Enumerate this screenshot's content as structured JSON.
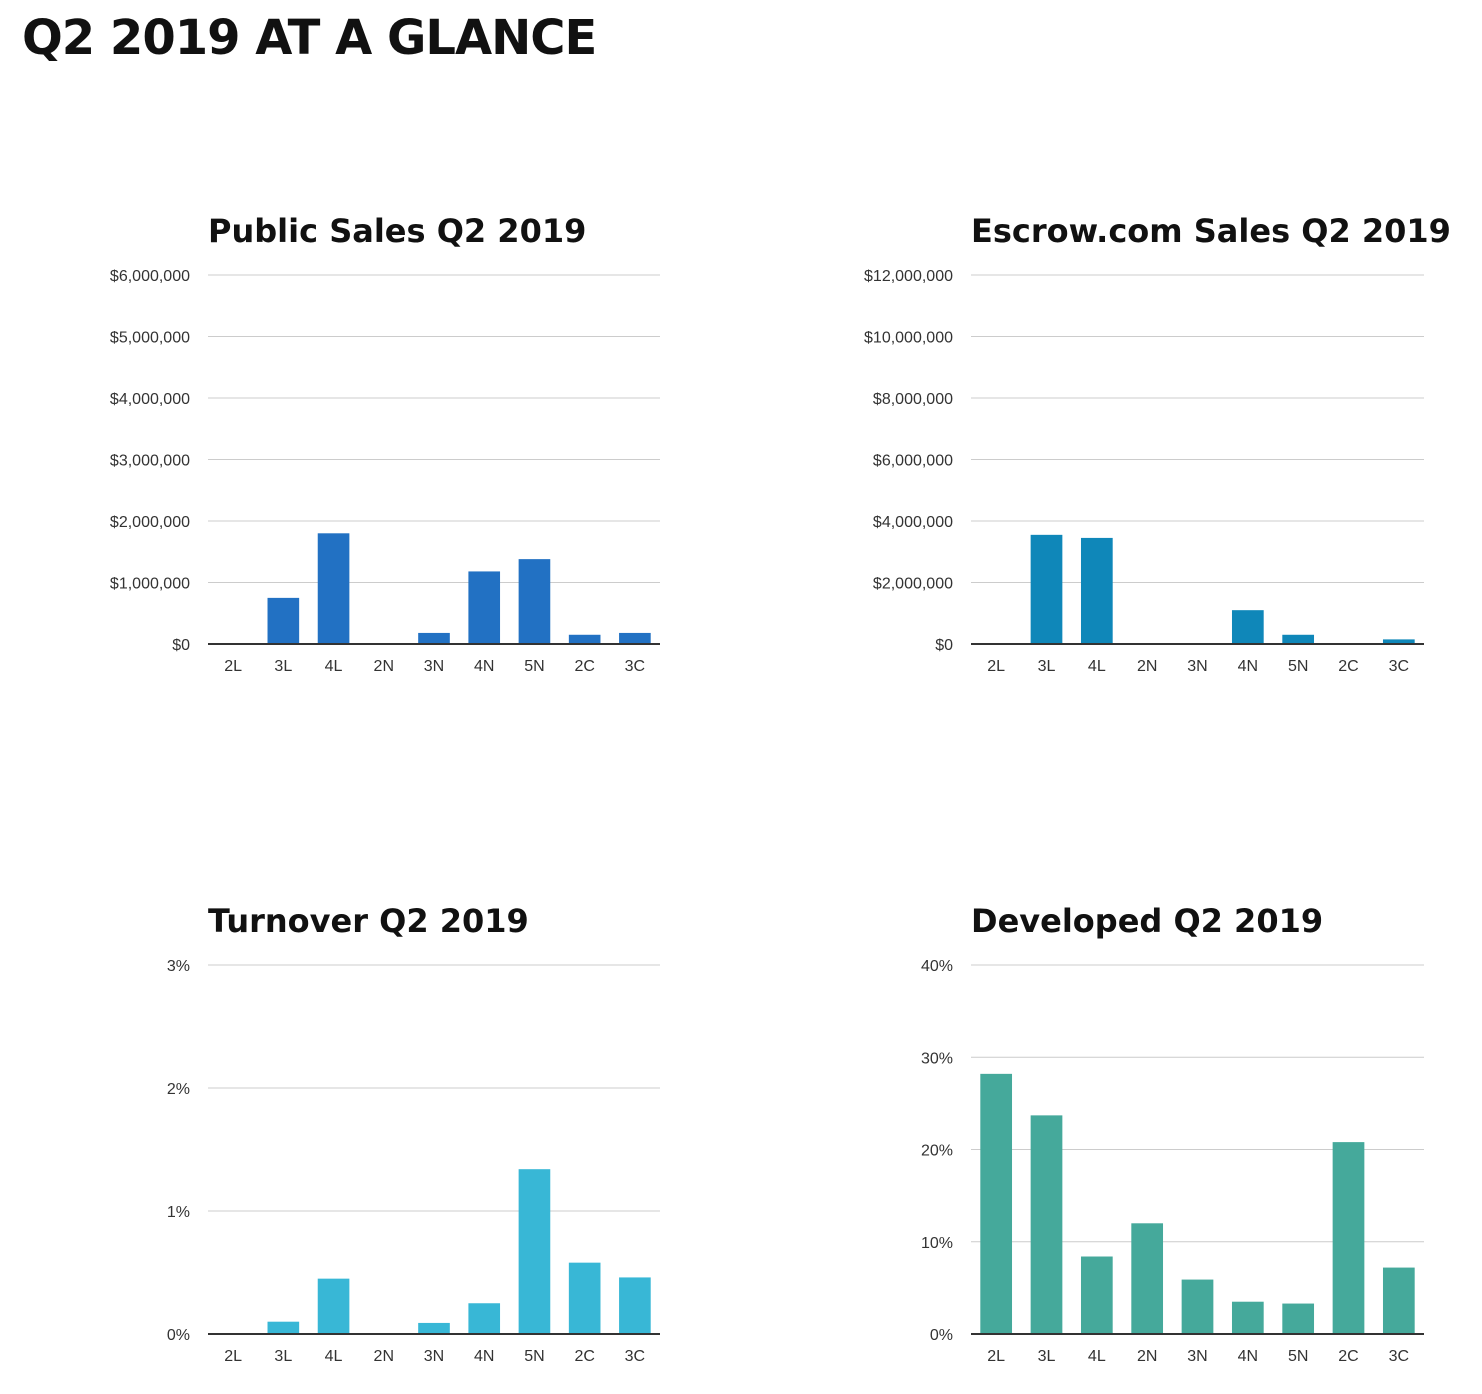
{
  "page_title": "Q2 2019 AT A GLANCE",
  "chart_data": [
    {
      "type": "bar",
      "title": "Public Sales Q2 2019",
      "categories": [
        "2L",
        "3L",
        "4L",
        "2N",
        "3N",
        "4N",
        "5N",
        "2C",
        "3C"
      ],
      "values": [
        0,
        750000,
        1800000,
        0,
        180000,
        1180000,
        1380000,
        150000,
        180000
      ],
      "ylim": [
        0,
        6000000
      ],
      "yticks": [
        0,
        1000000,
        2000000,
        3000000,
        4000000,
        5000000,
        6000000
      ],
      "ytick_labels": [
        "$0",
        "$1,000,000",
        "$2,000,000",
        "$3,000,000",
        "$4,000,000",
        "$5,000,000",
        "$6,000,000"
      ],
      "color": "#2271c3",
      "grid": true
    },
    {
      "type": "bar",
      "title": "Escrow.com Sales Q2 2019",
      "categories": [
        "2L",
        "3L",
        "4L",
        "2N",
        "3N",
        "4N",
        "5N",
        "2C",
        "3C"
      ],
      "values": [
        0,
        3550000,
        3450000,
        0,
        0,
        1100000,
        300000,
        0,
        150000
      ],
      "ylim": [
        0,
        12000000
      ],
      "yticks": [
        0,
        2000000,
        4000000,
        6000000,
        8000000,
        10000000,
        12000000
      ],
      "ytick_labels": [
        "$0",
        "$2,000,000",
        "$4,000,000",
        "$6,000,000",
        "$8,000,000",
        "$10,000,000",
        "$12,000,000"
      ],
      "color": "#0f87b9",
      "grid": true
    },
    {
      "type": "bar",
      "title": "Turnover Q2 2019",
      "categories": [
        "2L",
        "3L",
        "4L",
        "2N",
        "3N",
        "4N",
        "5N",
        "2C",
        "3C"
      ],
      "values": [
        0,
        0.1,
        0.45,
        0,
        0.09,
        0.25,
        1.34,
        0.58,
        0.46
      ],
      "ylim": [
        0,
        3
      ],
      "yticks": [
        0,
        1,
        2,
        3
      ],
      "ytick_labels": [
        "0%",
        "1%",
        "2%",
        "3%"
      ],
      "color": "#38b7d6",
      "grid": true
    },
    {
      "type": "bar",
      "title": "Developed Q2 2019",
      "categories": [
        "2L",
        "3L",
        "4L",
        "2N",
        "3N",
        "4N",
        "5N",
        "2C",
        "3C"
      ],
      "values": [
        28.2,
        23.7,
        8.4,
        12.0,
        5.9,
        3.5,
        3.3,
        20.8,
        7.2
      ],
      "ylim": [
        0,
        40
      ],
      "yticks": [
        0,
        10,
        20,
        30,
        40
      ],
      "ytick_labels": [
        "0%",
        "10%",
        "20%",
        "30%",
        "40%"
      ],
      "color": "#45a99b",
      "grid": true
    }
  ]
}
